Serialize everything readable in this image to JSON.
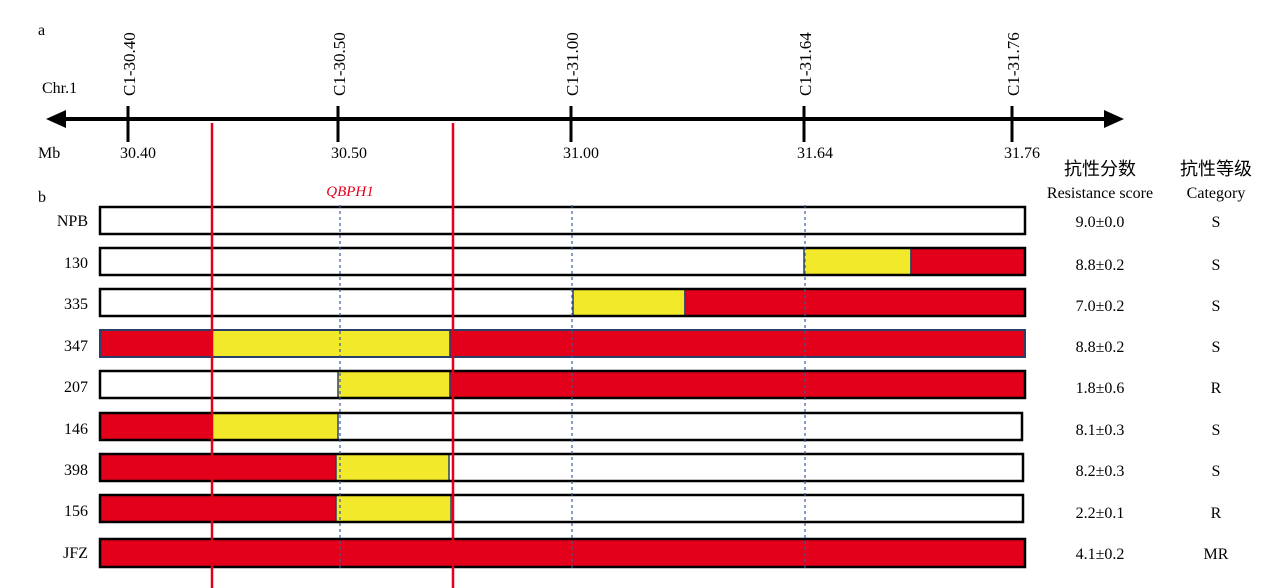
{
  "panel_a_label": "a",
  "panel_b_label": "b",
  "chromosome_label": "Chr.1",
  "unit_label": "Mb",
  "qtl_label": "QBPH1",
  "markers": [
    {
      "name": "C1-30.40",
      "position": "30.40"
    },
    {
      "name": "C1-30.50",
      "position": "30.50"
    },
    {
      "name": "C1-31.00",
      "position": "31.00"
    },
    {
      "name": "C1-31.64",
      "position": "31.64"
    },
    {
      "name": "C1-31.76",
      "position": "31.76"
    }
  ],
  "headers": {
    "score_zh": "抗性分数",
    "score_en": "Resistance score",
    "category_zh": "抗性等级",
    "category_en": "Category"
  },
  "legend_colors": {
    "background": "#ffffff",
    "heterozygous": "#f2e92a",
    "donor": "#e3001b"
  },
  "lines": [
    {
      "name": "NPB",
      "score": "9.0±0.0",
      "category": "S"
    },
    {
      "name": "130",
      "score": "8.8±0.2",
      "category": "S"
    },
    {
      "name": "335",
      "score": "7.0±0.2",
      "category": "S"
    },
    {
      "name": "347",
      "score": "8.8±0.2",
      "category": "S"
    },
    {
      "name": "207",
      "score": "1.8±0.6",
      "category": "R"
    },
    {
      "name": "146",
      "score": "8.1±0.3",
      "category": "S"
    },
    {
      "name": "398",
      "score": "8.2±0.3",
      "category": "S"
    },
    {
      "name": "156",
      "score": "2.2±0.1",
      "category": "R"
    },
    {
      "name": "JFZ",
      "score": "4.1±0.2",
      "category": "MR"
    }
  ]
}
